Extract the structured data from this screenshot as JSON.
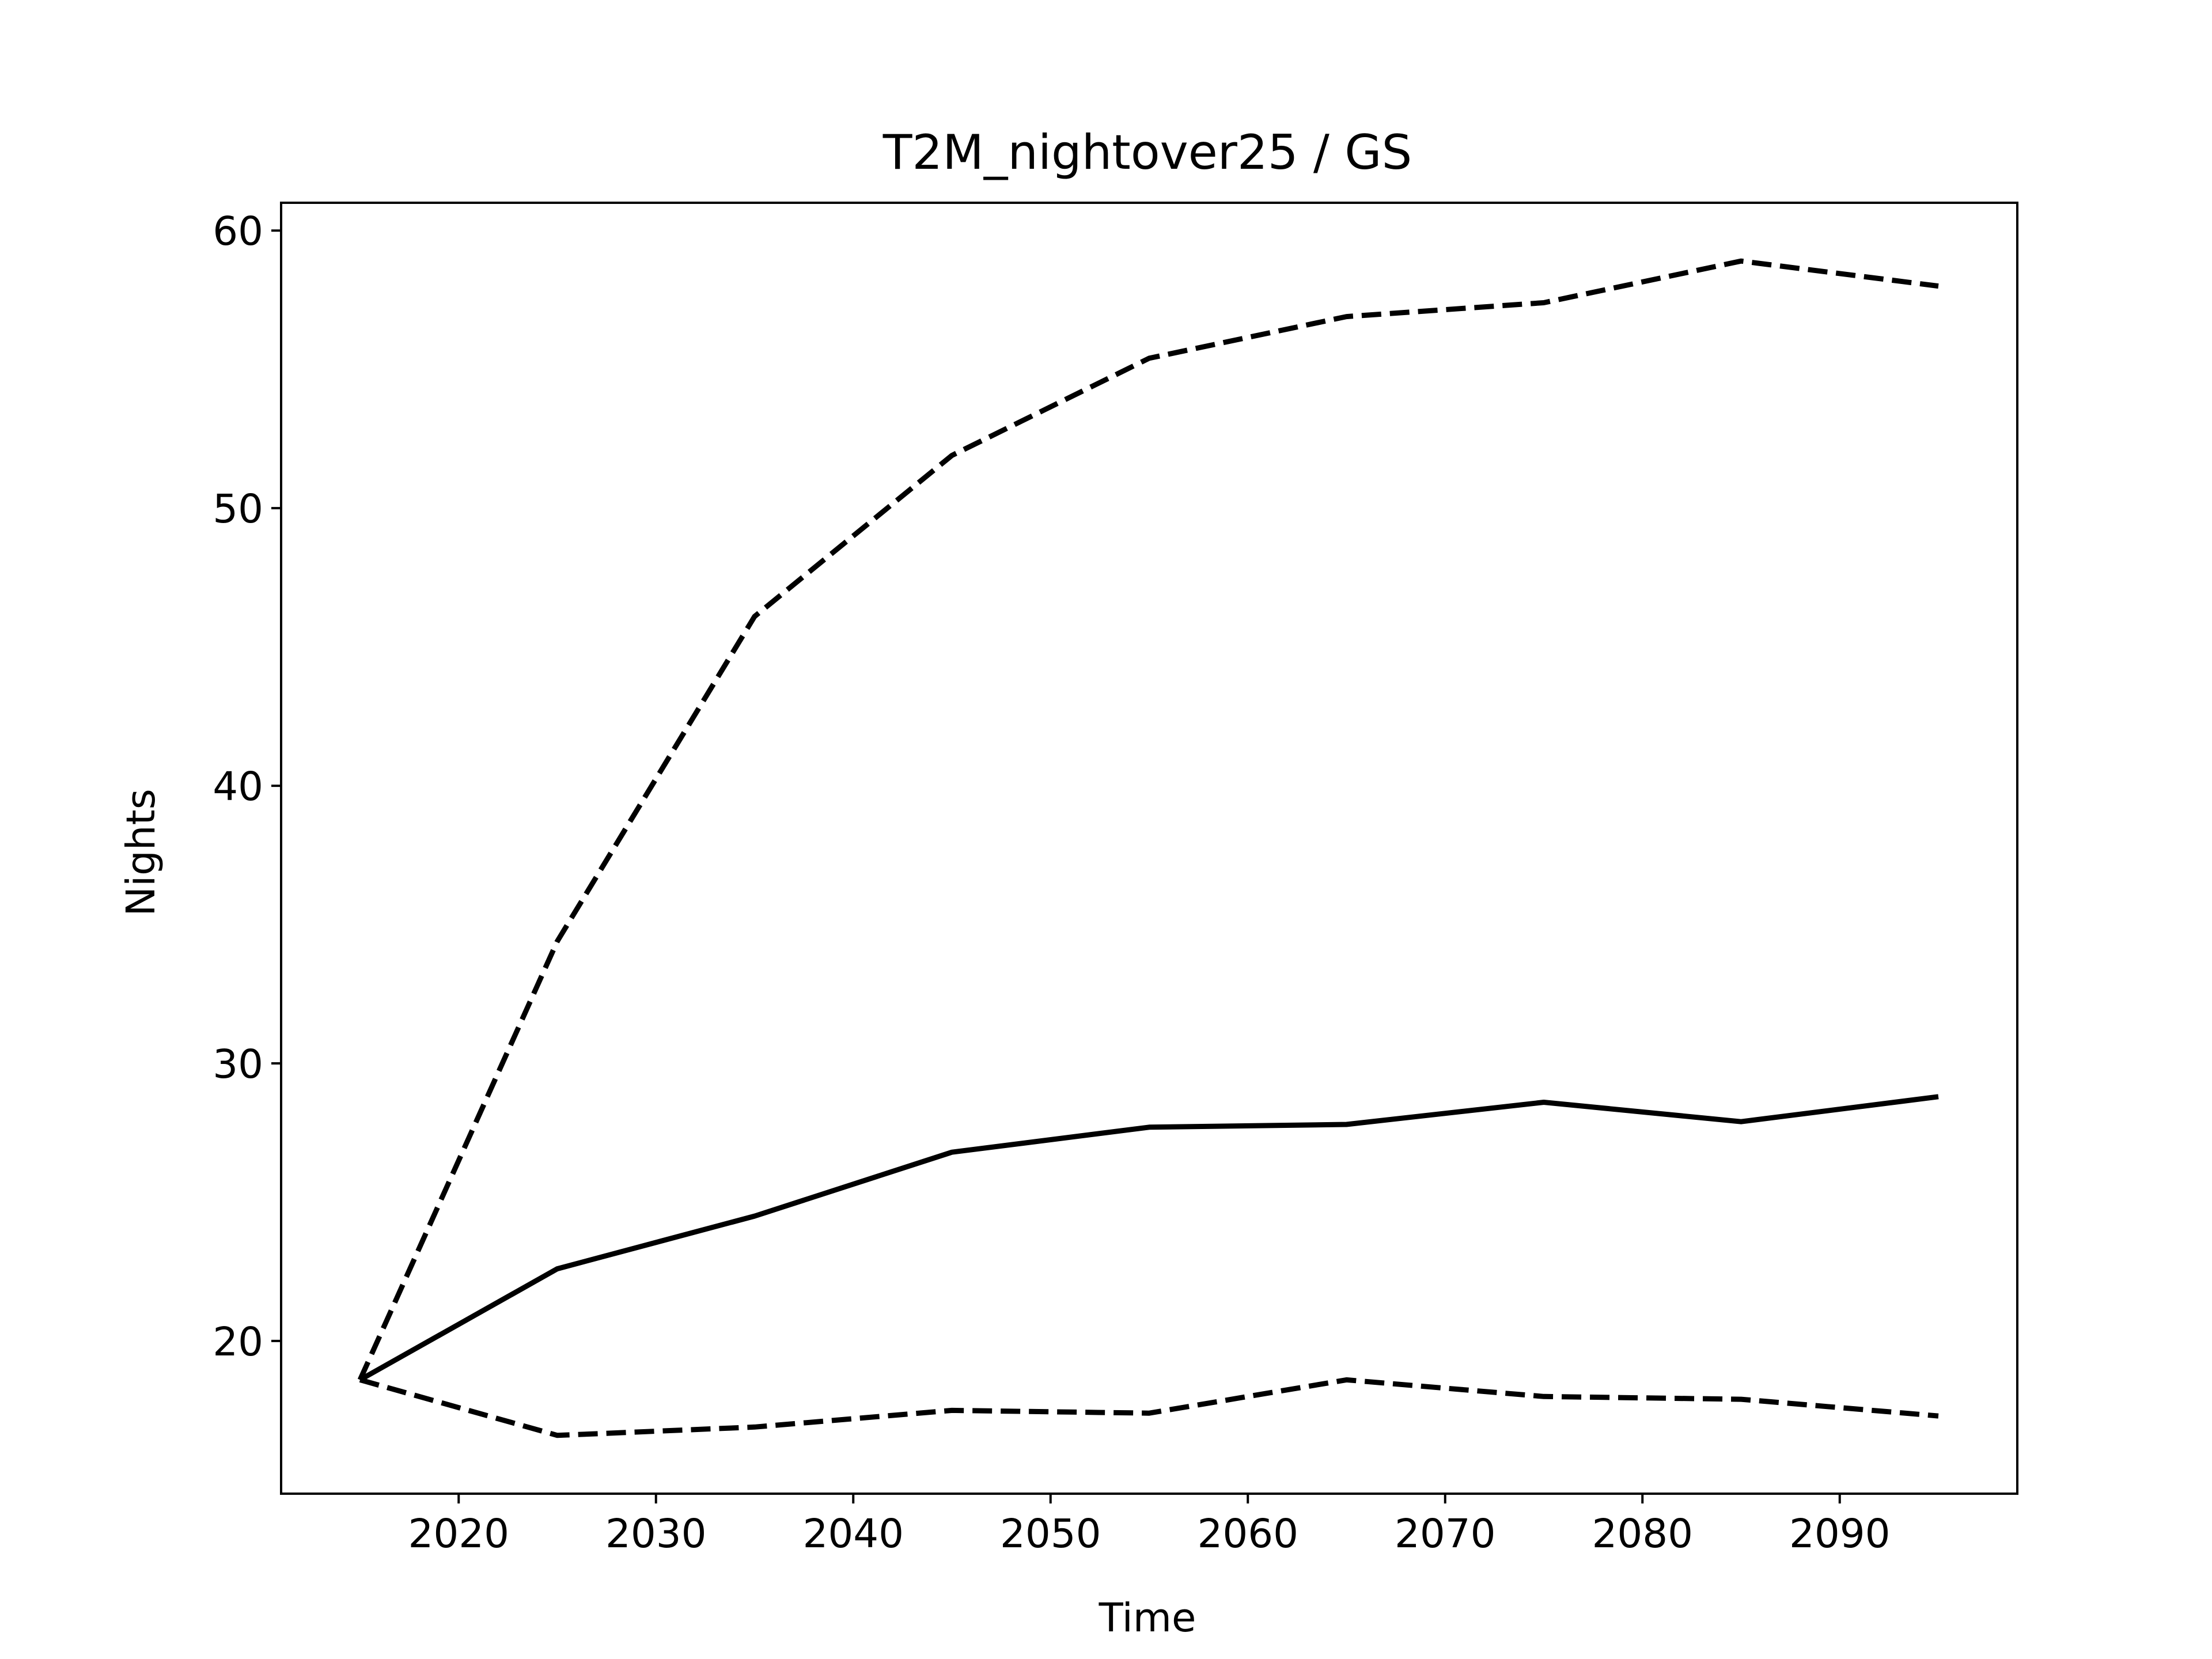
{
  "chart_data": {
    "type": "line",
    "title": "T2M_nightover25 / GS",
    "xlabel": "Time",
    "ylabel": "Nights",
    "xlim": [
      2011,
      2099
    ],
    "ylim": [
      14.5,
      61.0
    ],
    "xticks": [
      2020,
      2030,
      2040,
      2050,
      2060,
      2070,
      2080,
      2090
    ],
    "yticks": [
      20,
      30,
      40,
      50,
      60
    ],
    "grid": false,
    "x": [
      2015,
      2025,
      2035,
      2045,
      2055,
      2065,
      2075,
      2085,
      2095
    ],
    "series": [
      {
        "style": "dashed",
        "color": "#000000",
        "values": [
          18.6,
          34.4,
          46.1,
          51.9,
          55.4,
          56.9,
          57.4,
          58.9,
          58.0
        ]
      },
      {
        "style": "solid",
        "color": "#000000",
        "values": [
          18.6,
          22.6,
          24.5,
          26.8,
          27.7,
          27.8,
          28.6,
          27.9,
          28.8
        ]
      },
      {
        "style": "dashed",
        "color": "#000000",
        "values": [
          18.6,
          16.6,
          16.9,
          17.5,
          17.4,
          18.6,
          18.0,
          17.9,
          17.3
        ]
      }
    ]
  }
}
